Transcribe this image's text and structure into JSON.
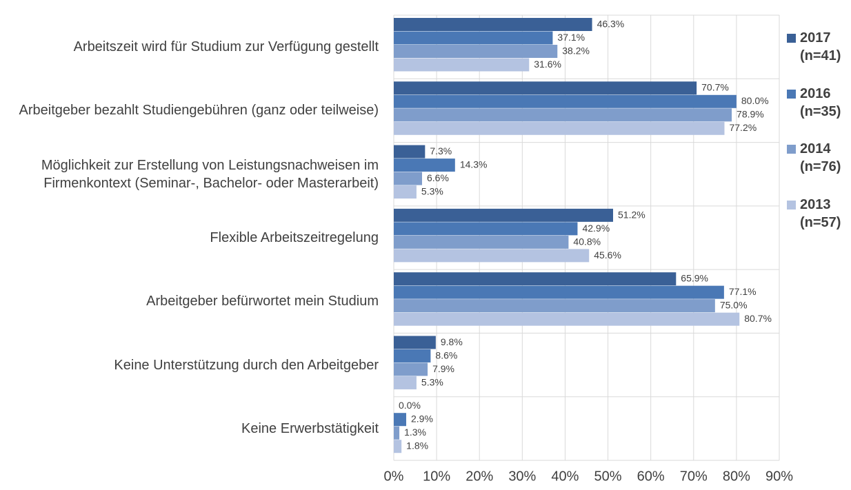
{
  "chart_data": {
    "type": "hbar",
    "categories": [
      "Arbeitszeit wird für Studium zur Verfügung gestellt",
      "Arbeitgeber bezahlt Studiengebühren (ganz oder teilweise)",
      "Möglichkeit zur Erstellung von Leistungsnachweisen im Firmenkontext (Seminar-, Bachelor- oder Masterarbeit)",
      "Flexible Arbeitszeitregelung",
      "Arbeitgeber befürwortet mein Studium",
      "Keine Unterstützung durch den Arbeitgeber",
      "Keine Erwerbstätigkeit"
    ],
    "series": [
      {
        "name": "2017 (n=41)",
        "color": "#3a6096",
        "values": [
          46.3,
          70.7,
          7.3,
          51.2,
          65.9,
          9.8,
          0.0
        ],
        "value_labels": [
          "46.3%",
          "70.7%",
          "7.3%",
          "51.2%",
          "65.9%",
          "9.8%",
          "0.0%"
        ]
      },
      {
        "name": "2016 (n=35)",
        "color": "#4a78b5",
        "values": [
          37.1,
          80.0,
          14.3,
          42.9,
          77.1,
          8.6,
          2.9
        ],
        "value_labels": [
          "37.1%",
          "80.0%",
          "14.3%",
          "42.9%",
          "77.1%",
          "8.6%",
          "2.9%"
        ]
      },
      {
        "name": "2014 (n=76)",
        "color": "#7f9dcb",
        "values": [
          38.2,
          78.9,
          6.6,
          40.8,
          75.0,
          7.9,
          1.3
        ],
        "value_labels": [
          "38.2%",
          "78.9%",
          "6.6%",
          "40.8%",
          "75.0%",
          "7.9%",
          "1.3%"
        ]
      },
      {
        "name": "2013 (n=57)",
        "color": "#b4c3e1",
        "values": [
          31.6,
          77.2,
          5.3,
          45.6,
          80.7,
          5.3,
          1.8
        ],
        "value_labels": [
          "31.6%",
          "77.2%",
          "5.3%",
          "45.6%",
          "80.7%",
          "5.3%",
          "1.8%"
        ]
      }
    ],
    "xlim": [
      0,
      90
    ],
    "xticks": [
      {
        "value": 0,
        "label": "0%"
      },
      {
        "value": 10,
        "label": "10%"
      },
      {
        "value": 20,
        "label": "20%"
      },
      {
        "value": 30,
        "label": "30%"
      },
      {
        "value": 40,
        "label": "40%"
      },
      {
        "value": 50,
        "label": "50%"
      },
      {
        "value": 60,
        "label": "60%"
      },
      {
        "value": 70,
        "label": "70%"
      },
      {
        "value": 80,
        "label": "80%"
      },
      {
        "value": 90,
        "label": "90%"
      }
    ],
    "grid": true,
    "legend": "right"
  }
}
